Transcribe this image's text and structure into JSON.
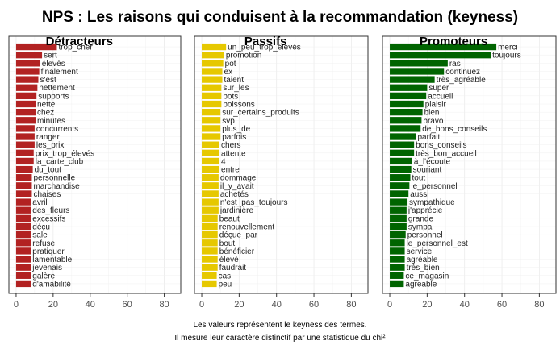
{
  "title": "NPS : Les raisons qui conduisent à la recommandation (keyness)",
  "caption": {
    "line1": "Les valeurs représentent le keyness des termes.",
    "line2": "Il mesure leur caractère distinctif par une statistique du chi²"
  },
  "colors": {
    "detracteurs": "#b22222",
    "passifs": "#e6c800",
    "promoteurs": "#006400"
  },
  "chart_data": [
    {
      "type": "bar",
      "orientation": "horizontal",
      "title": "Détracteurs",
      "color": "#b22222",
      "xlim": [
        0,
        85
      ],
      "xticks": [
        0,
        20,
        40,
        60,
        80
      ],
      "grid": true,
      "categories": [
        "trop_cher",
        "sert",
        "élevés",
        "finalement",
        "s'est",
        "nettement",
        "supports",
        "nette",
        "chez",
        "minutes",
        "concurrents",
        "ranger",
        "les_prix",
        "prix_trop_élevés",
        "la_carte_club",
        "du_tout",
        "personnelle",
        "marchandise",
        "chaises",
        "avril",
        "des_fleurs",
        "excessifs",
        "déçu",
        "sale",
        "refuse",
        "pratiquer",
        "lamentable",
        "jevenais",
        "galère",
        "d'amabilité"
      ],
      "values": [
        22,
        14,
        13,
        12.5,
        12,
        11.5,
        11,
        10.5,
        10.5,
        10.5,
        10,
        10,
        10,
        9.5,
        9.5,
        9,
        8.5,
        8.5,
        8.5,
        8,
        8,
        8,
        8,
        8,
        8,
        8,
        8,
        8,
        8,
        8
      ]
    },
    {
      "type": "bar",
      "orientation": "horizontal",
      "title": "Passifs",
      "color": "#e6c800",
      "xlim": [
        0,
        85
      ],
      "xticks": [
        0,
        20,
        40,
        60,
        80
      ],
      "grid": true,
      "categories": [
        "un_peu_trop_élevés",
        "promotion",
        "pot",
        "ex",
        "taient",
        "sur_les",
        "pots",
        "poissons",
        "sur_certains_produits",
        "svp",
        "plus_de",
        "parfois",
        "chers",
        "attente",
        "4",
        "entre",
        "dommage",
        "il_y_avait",
        "achetés",
        "n'est_pas_toujours",
        "jardinière",
        "beaut",
        "renouvellement",
        "déçue_par",
        "bout",
        "bénéficier",
        "élevé",
        "faudrait",
        "cas",
        "peu"
      ],
      "values": [
        13,
        12,
        11.5,
        11,
        11,
        10.5,
        10.5,
        10.5,
        10,
        10,
        10,
        10,
        9.5,
        9.5,
        9.5,
        9.5,
        9,
        9,
        9,
        9,
        9,
        8.5,
        8.5,
        8.5,
        8.5,
        8.5,
        8.5,
        8.5,
        8,
        8
      ]
    },
    {
      "type": "bar",
      "orientation": "horizontal",
      "title": "Promoteurs",
      "color": "#006400",
      "xlim": [
        0,
        85
      ],
      "xticks": [
        0,
        20,
        40,
        60,
        80
      ],
      "grid": true,
      "categories": [
        "merci",
        "toujours",
        "ras",
        "continuez",
        "très_agréable",
        "super",
        "accueil",
        "plaisir",
        "bien",
        "bravo",
        "de_bons_conseils",
        "parfait",
        "bons_conseils",
        "très_bon_accueil",
        "à_l'écoute",
        "souriant",
        "tout",
        "le_personnel",
        "aussi",
        "sympathique",
        "j'apprécie",
        "grande",
        "sympa",
        "personnel",
        "le_personnel_est",
        "service",
        "agréable",
        "très_bien",
        "ce_magasin",
        "agreable"
      ],
      "values": [
        57,
        54,
        31,
        29,
        24,
        20,
        19.5,
        18,
        17.5,
        17,
        16.5,
        14,
        13,
        13,
        12,
        11.5,
        11,
        10.5,
        10,
        9.5,
        9,
        9,
        9,
        8.5,
        8,
        8,
        8,
        8,
        7.5,
        7.5
      ]
    }
  ]
}
